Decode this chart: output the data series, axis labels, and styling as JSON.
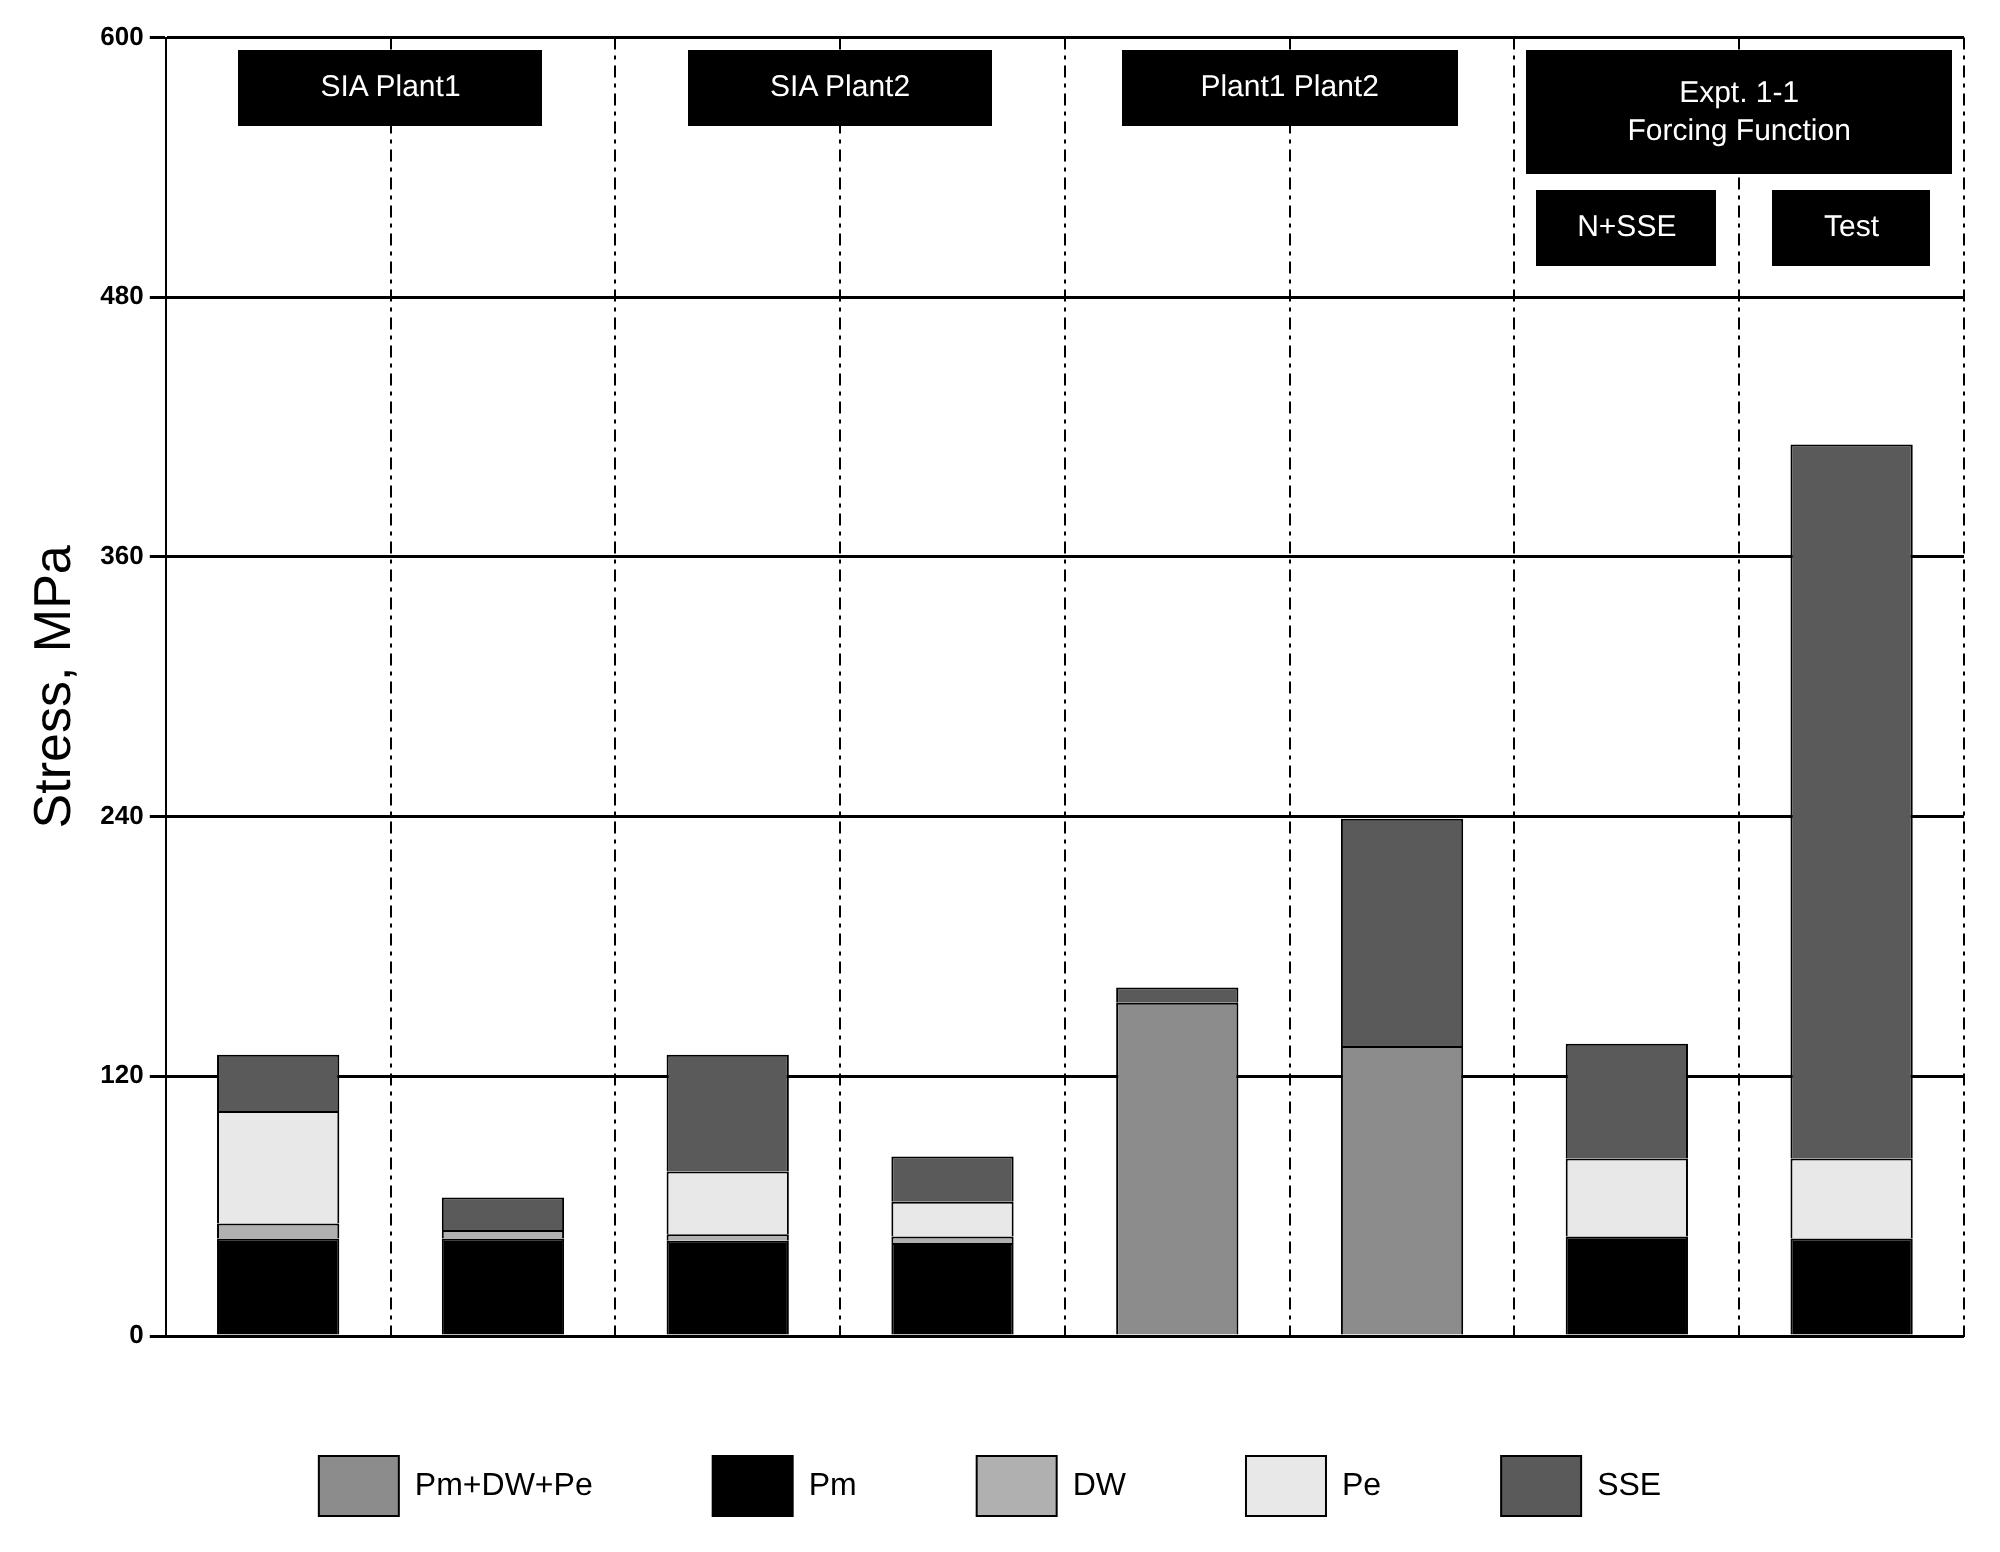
{
  "chart_data": {
    "type": "bar",
    "stacked": true,
    "ylabel": "Stress, MPa",
    "categories": [
      null,
      null,
      null,
      null,
      null,
      null,
      null,
      null
    ],
    "series": [
      {
        "name": "Pm+DW+Pe",
        "color": "#8c8c8c",
        "values": [
          null,
          null,
          null,
          null,
          154,
          134,
          null,
          null
        ]
      },
      {
        "name": "Pm",
        "color": "#000000",
        "values": [
          45,
          45,
          44,
          43,
          null,
          null,
          46,
          45
        ]
      },
      {
        "name": "DW",
        "color": "#b0b0b0",
        "values": [
          7,
          4,
          3,
          3,
          null,
          null,
          null,
          null
        ]
      },
      {
        "name": "Pe",
        "color": "#e8e8e8",
        "values": [
          52,
          null,
          29,
          16,
          null,
          null,
          36,
          37
        ]
      },
      {
        "name": "SSE",
        "color": "#5a5a5a",
        "values": [
          26,
          15,
          54,
          21,
          7,
          105,
          53,
          330
        ]
      }
    ],
    "ylim": [
      0,
      600
    ],
    "yticks": [
      0,
      120,
      240,
      360,
      480,
      600
    ],
    "grid": true,
    "legend": "bottom",
    "annotations": [
      "SIA Plant1",
      "SIA Plant2",
      "Plant1 Plant2",
      "Expt. 1-1\nForcing Function",
      "N+SSE",
      "Test"
    ]
  }
}
